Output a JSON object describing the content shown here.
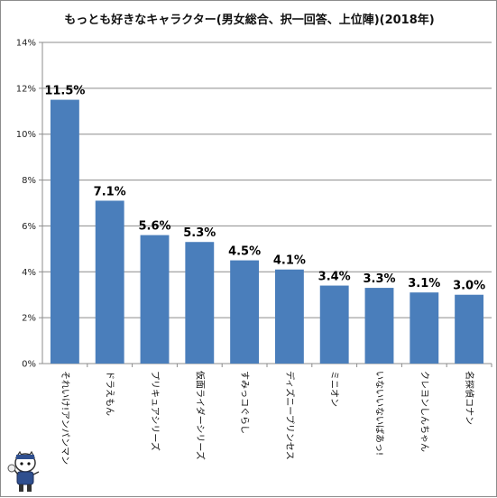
{
  "chart_data": {
    "type": "bar",
    "title": "もっとも好きなキャラクター(男女総合、択一回答、上位陣)(2018年)",
    "xlabel": "",
    "ylabel": "",
    "ylim": [
      0,
      14
    ],
    "yticks": [
      "0%",
      "2%",
      "4%",
      "6%",
      "8%",
      "10%",
      "12%",
      "14%"
    ],
    "grid": true,
    "categories": [
      "それいけ!アンパンマン",
      "ドラえもん",
      "プリキュアシリーズ",
      "仮面ライダーシリーズ",
      "すみっコぐらし",
      "ディズニープリンセス",
      "ミニオン",
      "いないいないばあっ!",
      "クレヨンしんちゃん",
      "名探偵コナン"
    ],
    "values": [
      11.5,
      7.1,
      5.6,
      5.3,
      4.5,
      4.1,
      3.4,
      3.3,
      3.1,
      3.0
    ],
    "value_labels": [
      "11.5%",
      "7.1%",
      "5.6%",
      "5.3%",
      "4.5%",
      "4.1%",
      "3.4%",
      "3.3%",
      "3.1%",
      "3.0%"
    ],
    "bar_color": "#4a7ebb",
    "grid_color": "#8c8c8c",
    "axis_color": "#8c8c8c"
  },
  "decoration": {
    "mascot_icon": "mascot-character-icon"
  }
}
